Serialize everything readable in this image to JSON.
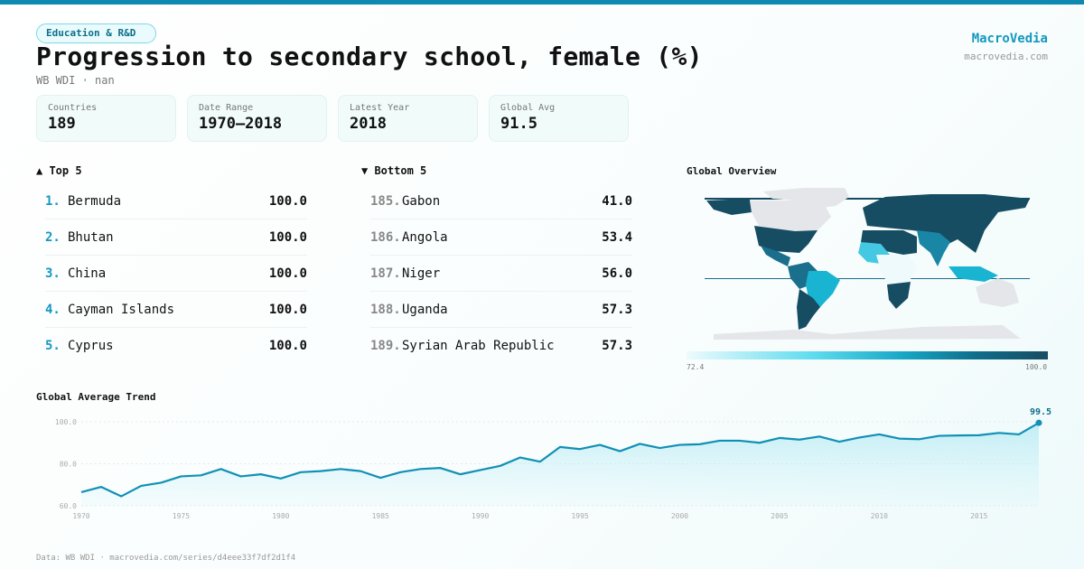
{
  "header": {
    "category": "Education & R&D",
    "title": "Progression to secondary school, female (%)",
    "subtitle": "WB WDI · nan",
    "brand": "MacroVedia",
    "brand_url": "macrovedia.com"
  },
  "stats": [
    {
      "label": "Countries",
      "value": "189"
    },
    {
      "label": "Date Range",
      "value": "1970–2018"
    },
    {
      "label": "Latest Year",
      "value": "2018"
    },
    {
      "label": "Global Avg",
      "value": "91.5"
    }
  ],
  "top5": {
    "title": "▲ Top 5",
    "items": [
      {
        "rank": "1.",
        "name": "Bermuda",
        "value": "100.0"
      },
      {
        "rank": "2.",
        "name": "Bhutan",
        "value": "100.0"
      },
      {
        "rank": "3.",
        "name": "China",
        "value": "100.0"
      },
      {
        "rank": "4.",
        "name": "Cayman Islands",
        "value": "100.0"
      },
      {
        "rank": "5.",
        "name": "Cyprus",
        "value": "100.0"
      }
    ]
  },
  "bottom5": {
    "title": "▼ Bottom 5",
    "items": [
      {
        "rank": "185.",
        "name": "Gabon",
        "value": "41.0"
      },
      {
        "rank": "186.",
        "name": "Angola",
        "value": "53.4"
      },
      {
        "rank": "187.",
        "name": "Niger",
        "value": "56.0"
      },
      {
        "rank": "188.",
        "name": "Uganda",
        "value": "57.3"
      },
      {
        "rank": "189.",
        "name": "Syrian Arab Republic",
        "value": "57.3"
      }
    ]
  },
  "map": {
    "title": "Global Overview",
    "scale_min": "72.4",
    "scale_max": "100.0"
  },
  "chart_data": {
    "type": "area",
    "title": "Global Average Trend",
    "x": [
      1970,
      1971,
      1972,
      1973,
      1974,
      1975,
      1976,
      1977,
      1978,
      1979,
      1980,
      1981,
      1982,
      1983,
      1984,
      1985,
      1986,
      1987,
      1988,
      1989,
      1990,
      1991,
      1992,
      1993,
      1994,
      1995,
      1996,
      1997,
      1998,
      1999,
      2000,
      2001,
      2002,
      2003,
      2004,
      2005,
      2006,
      2007,
      2008,
      2009,
      2010,
      2011,
      2012,
      2013,
      2014,
      2015,
      2016,
      2017,
      2018
    ],
    "values": [
      66.5,
      69,
      64.5,
      69.5,
      71,
      74,
      74.5,
      77.5,
      74,
      75,
      73,
      76,
      76.5,
      77.5,
      76.5,
      73.3,
      76,
      77.5,
      78,
      75,
      77,
      79,
      83,
      81,
      88,
      87,
      89,
      86,
      89.5,
      87.5,
      89,
      89.3,
      91,
      91,
      90,
      92.3,
      91.5,
      93,
      90.5,
      92.5,
      94,
      92,
      91.7,
      93.3,
      93.5,
      93.6,
      94.7,
      94,
      99.5
    ],
    "ylim": [
      60,
      100
    ],
    "yticks": [
      "60.0",
      "80.0",
      "100.0"
    ],
    "xticks": [
      "1970",
      "1975",
      "1980",
      "1985",
      "1990",
      "1995",
      "2000",
      "2005",
      "2010",
      "2015"
    ],
    "last_label": "99.5",
    "color": "#1190b5"
  },
  "footer": "Data: WB WDI · macrovedia.com/series/d4eee33f7df2d1f4"
}
